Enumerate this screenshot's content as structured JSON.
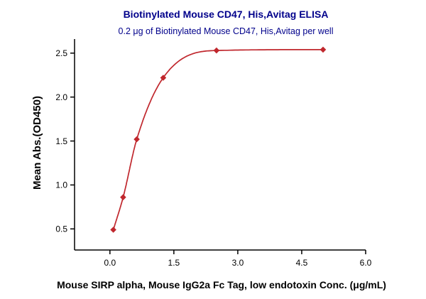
{
  "chart_data": {
    "type": "scatter",
    "title": "Biotinylated Mouse CD47, His,Avitag ELISA",
    "subtitle": "0.2 μg of Biotinylated Mouse CD47, His,Avitag per well",
    "xlabel": "Mouse SIRP alpha, Mouse IgG2a Fc Tag, low endotoxin Conc. (μg/mL)",
    "ylabel": "Mean Abs.(OD450)",
    "x": [
      0.08,
      0.31,
      0.63,
      1.25,
      2.5,
      5.0
    ],
    "y": [
      0.49,
      0.86,
      1.52,
      2.22,
      2.53,
      2.54
    ],
    "fit": "4PL sigmoidal dose-response curve through points",
    "xticks": [
      0.0,
      1.5,
      3.0,
      4.5,
      6.0
    ],
    "yticks": [
      0.5,
      1.0,
      1.5,
      2.0,
      2.5
    ],
    "xtick_labels": [
      "0.0",
      "1.5",
      "3.0",
      "4.5",
      "6.0"
    ],
    "ytick_labels": [
      "0.5",
      "1.0",
      "1.5",
      "2.0",
      "2.5"
    ],
    "xlim": [
      -0.83,
      6.0
    ],
    "ylim": [
      0.26,
      2.66
    ],
    "marker": "diamond",
    "series_color": "#C0272D",
    "title_color": "#00008B",
    "axis_color": "#000000",
    "grid": false,
    "legend_position": "none"
  }
}
